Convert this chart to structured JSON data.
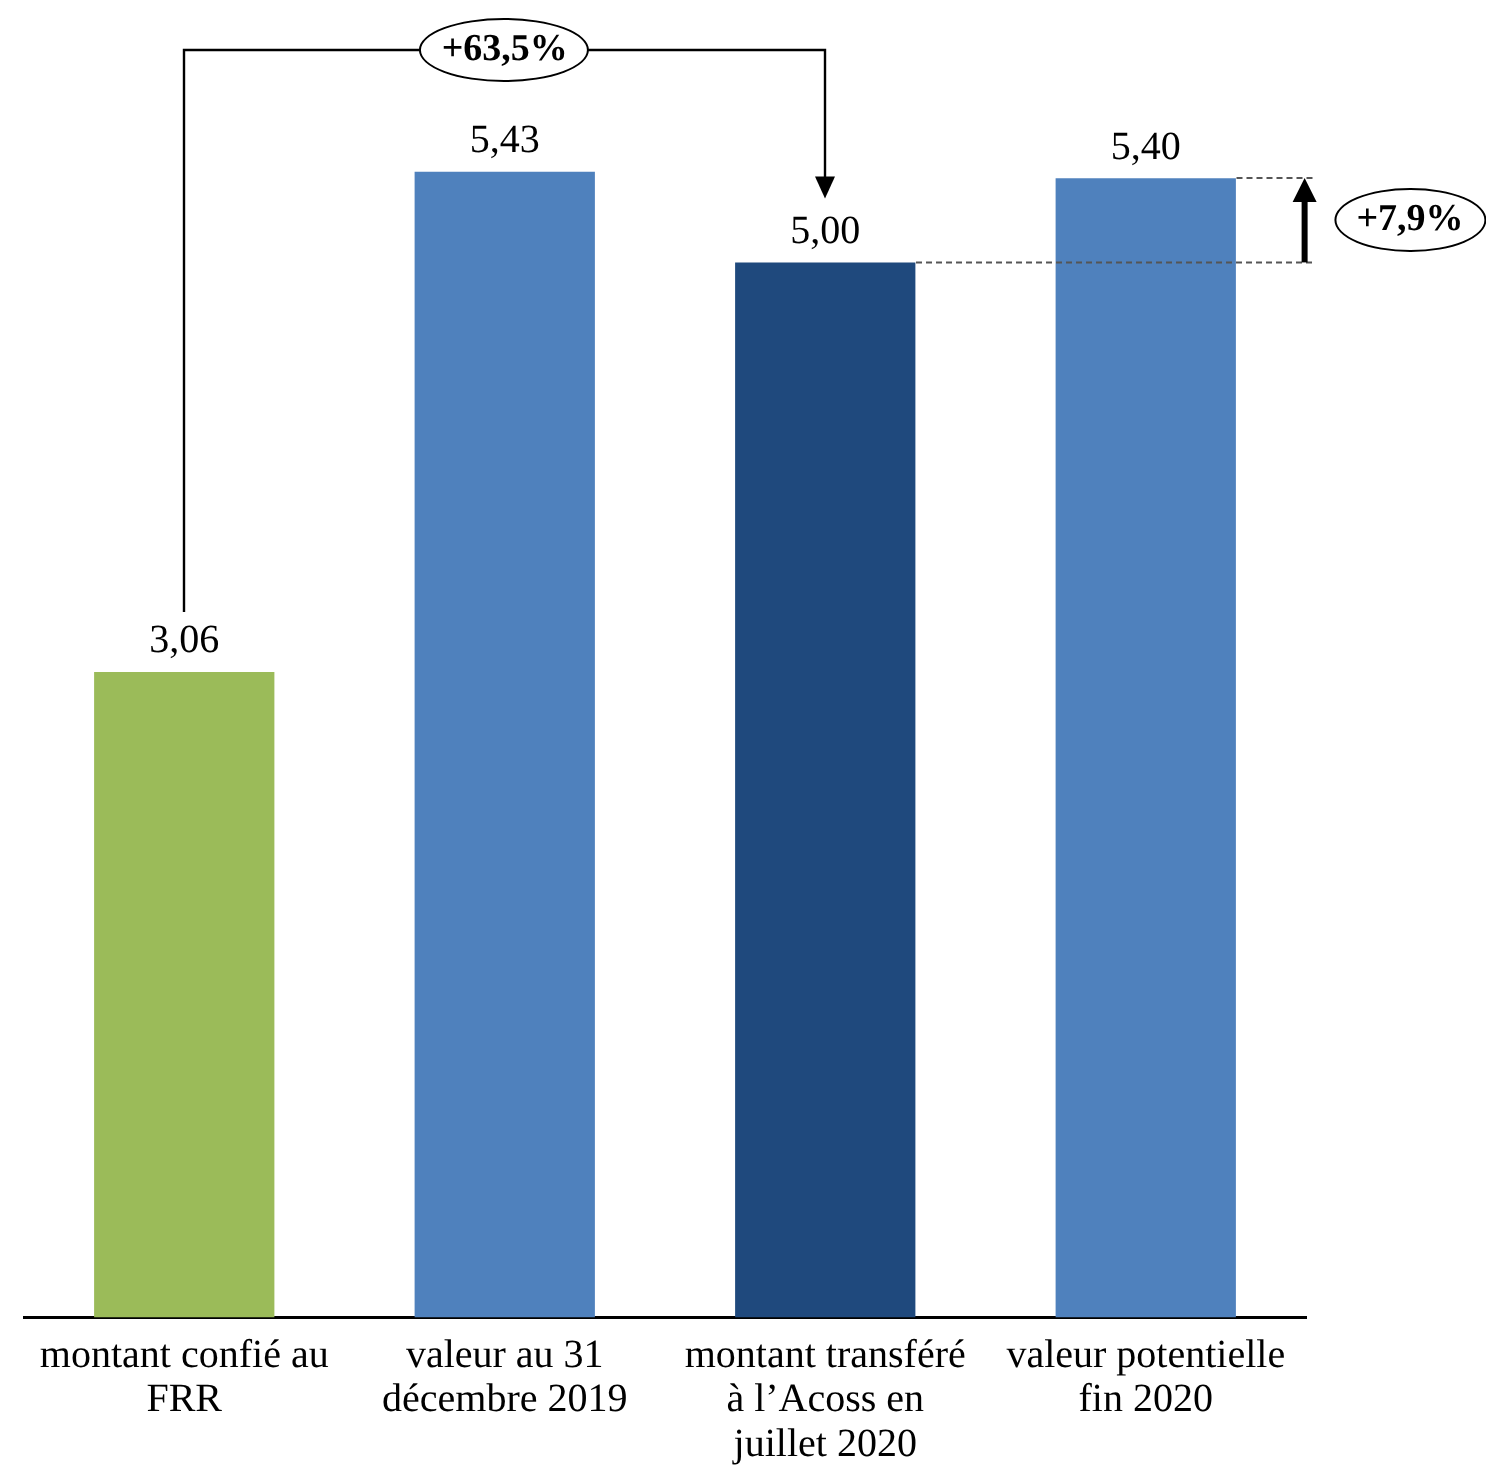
{
  "chart_data": {
    "type": "bar",
    "categories": [
      "montant confié au FRR",
      "valeur au 31 décembre 2019",
      "montant transféré à l’Acoss en juillet 2020",
      "valeur potentielle fin 2020"
    ],
    "values": [
      3.06,
      5.43,
      5.0,
      5.4
    ],
    "colors": [
      "#9bbb59",
      "#4f81bd",
      "#1f497d",
      "#4f81bd"
    ],
    "value_labels": [
      "3,06",
      "5,43",
      "5,00",
      "5,40"
    ],
    "annotations": [
      "+63,5%",
      "+7,9%"
    ],
    "grid": false,
    "legend": false
  }
}
